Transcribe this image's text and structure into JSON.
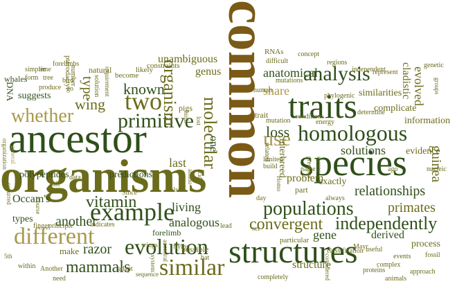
{
  "palette": {
    "dark_green": "#2f4f1a",
    "olive": "#6b6b1c",
    "brown": "#7a5a16",
    "khaki": "#a89a4a"
  },
  "words": [
    "common",
    "organisms",
    "ancestor",
    "species",
    "traits",
    "structures",
    "homologous",
    "similar",
    "different",
    "populations",
    "example",
    "evolution",
    "analysis",
    "two",
    "mammals",
    "use",
    "molecular",
    "primitive",
    "whether",
    "organism",
    "independently",
    "convergent",
    "vitamin",
    "relationships",
    "known",
    "loss",
    "primates",
    "analogous",
    "Occam's",
    "razor",
    "anatomical",
    "solutions",
    "share",
    "wing",
    "genus",
    "guinea",
    "type",
    "another",
    "structure",
    "gene",
    "living",
    "predictions",
    "evolved",
    "complicate",
    "similarities",
    "cladistic",
    "problem",
    "interbreed",
    "last",
    "one",
    "exactly",
    "information",
    "evidence",
    "derived",
    "process",
    "unambiguous",
    "forelimb",
    "DNA",
    "polypeptides",
    "types",
    "suggests",
    "whales",
    "forelimbs",
    "pterodactyl",
    "natural",
    "become",
    "likely",
    "constraints",
    "concept",
    "RNAs",
    "mutations",
    "regions",
    "independent",
    "genetic",
    "difficult",
    "human",
    "phylogenic",
    "determine",
    "represent",
    "trait",
    "conditions",
    "energy",
    "related",
    "classification",
    "useful",
    "events",
    "Mayr",
    "fossil",
    "complex",
    "proteins",
    "approach",
    "animals",
    "considered",
    "completely",
    "sequence",
    "system",
    "flying",
    "ancestral",
    "wings",
    "bat",
    "adapt",
    "need",
    "within",
    "make",
    "principle",
    "indicates",
    "finger",
    "course",
    "occurred",
    "organization",
    "general",
    "simpler",
    "form",
    "time",
    "tree",
    "produce",
    "bird",
    "number",
    "solution",
    "requirement",
    "data",
    "amino",
    "acids",
    "pigs",
    "birds",
    "lost",
    "also",
    "build",
    "Homo",
    "name",
    "presence",
    "means",
    "nucleic",
    "ago",
    "set",
    "day",
    "part",
    "particular",
    "possible",
    "lead",
    "life",
    "Since",
    "limited",
    "mutation",
    "always",
    "groups",
    "go",
    "5th",
    "Another",
    "analogous"
  ]
}
